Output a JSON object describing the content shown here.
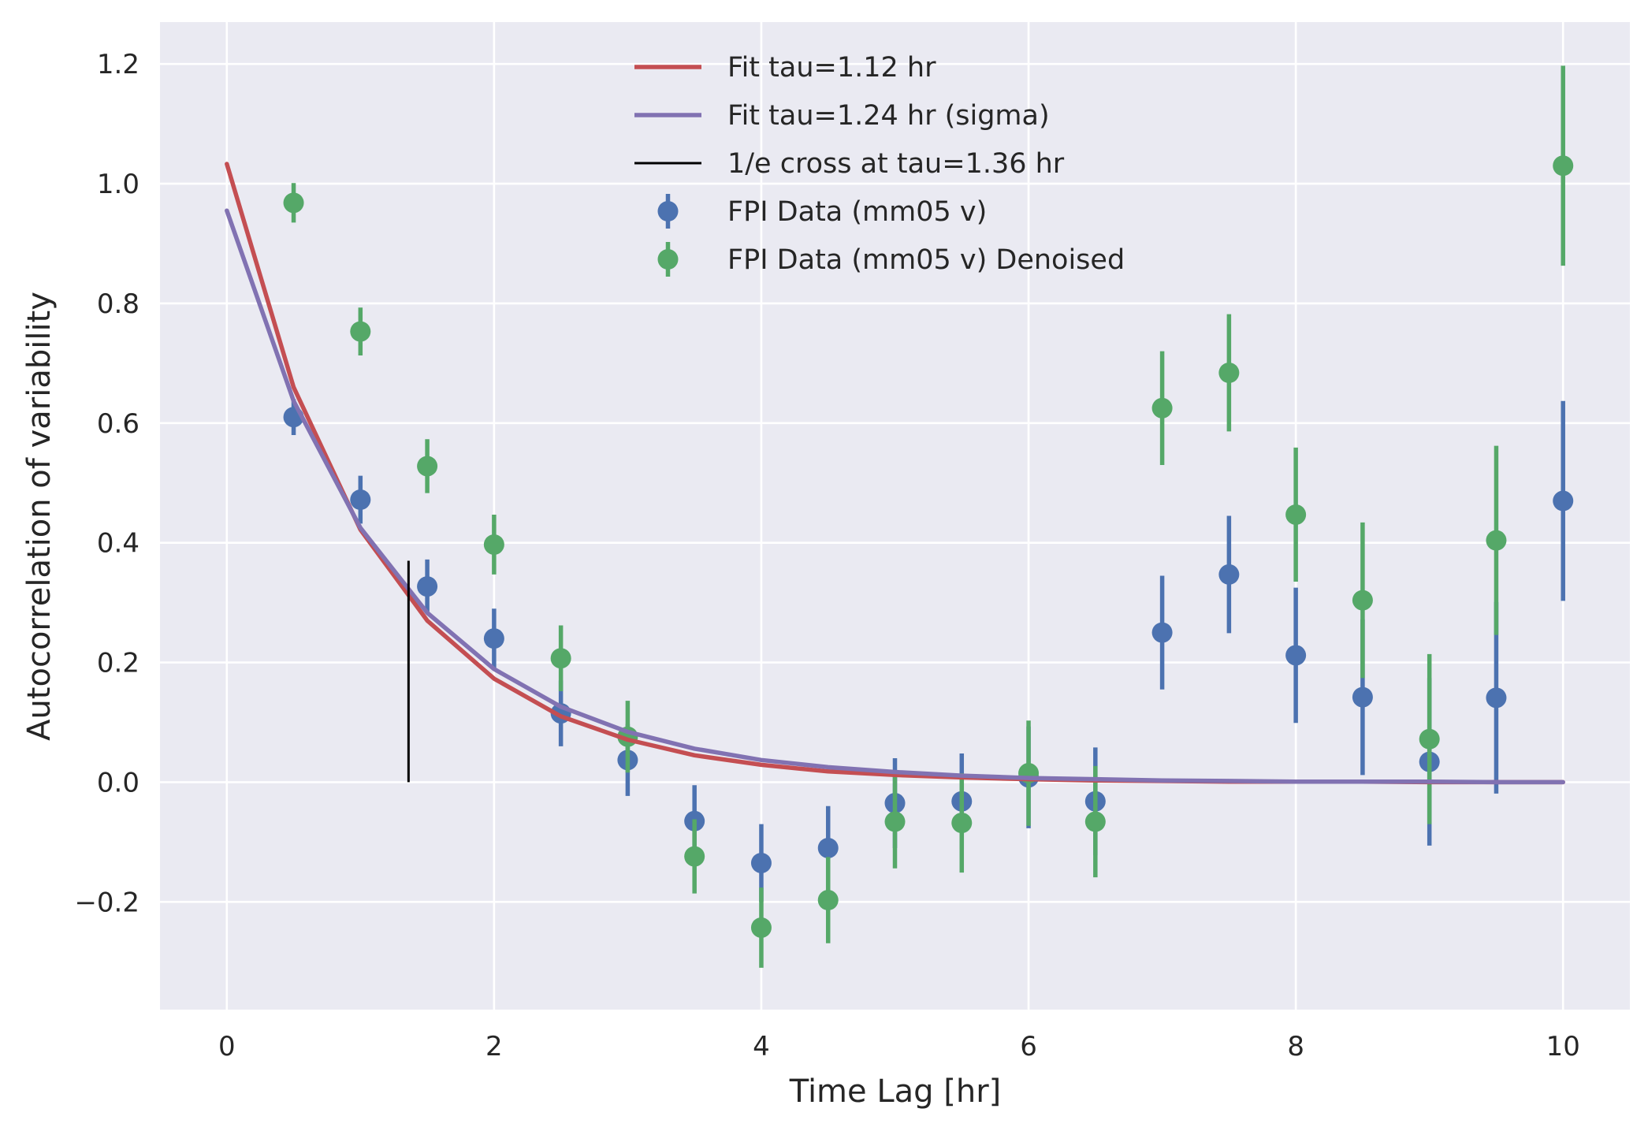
{
  "chart_data": {
    "type": "scatter",
    "xlabel": "Time Lag [hr]",
    "ylabel": "Autocorrelation of variability",
    "xlim": [
      -0.5,
      10.5
    ],
    "ylim": [
      -0.38,
      1.27
    ],
    "xticks": [
      0,
      2,
      4,
      6,
      8,
      10
    ],
    "xtick_labels": [
      "0",
      "2",
      "4",
      "6",
      "8",
      "10"
    ],
    "yticks": [
      -0.2,
      0.0,
      0.2,
      0.4,
      0.6,
      0.8,
      1.0,
      1.2
    ],
    "ytick_labels": [
      "−0.2",
      "0.0",
      "0.2",
      "0.4",
      "0.6",
      "0.8",
      "1.0",
      "1.2"
    ],
    "grid": true,
    "legend_position": "top-center",
    "background_color": "#EAEAF2",
    "lines": [
      {
        "name": "Fit tau=1.12 hr",
        "color": "#C44E52",
        "x": [
          0,
          0.5,
          1,
          1.5,
          2,
          2.5,
          3,
          3.5,
          4,
          4.5,
          5,
          5.5,
          6,
          6.5,
          7,
          7.5,
          8,
          8.5,
          9,
          9.5,
          10
        ],
        "y": [
          1.033,
          0.66,
          0.422,
          0.27,
          0.173,
          0.11,
          0.071,
          0.045,
          0.029,
          0.018,
          0.012,
          0.008,
          0.005,
          0.003,
          0.002,
          0.001,
          0.001,
          0.001,
          0.0,
          0.0,
          0.0
        ]
      },
      {
        "name": "Fit tau=1.24 hr (sigma)",
        "color": "#8172B2",
        "x": [
          0,
          0.5,
          1,
          1.5,
          2,
          2.5,
          3,
          3.5,
          4,
          4.5,
          5,
          5.5,
          6,
          6.5,
          7,
          7.5,
          8,
          8.5,
          9,
          9.5,
          10
        ],
        "y": [
          0.955,
          0.637,
          0.425,
          0.283,
          0.189,
          0.126,
          0.084,
          0.056,
          0.037,
          0.025,
          0.017,
          0.011,
          0.007,
          0.005,
          0.003,
          0.002,
          0.001,
          0.001,
          0.001,
          0.0,
          0.0
        ]
      }
    ],
    "vlines": [
      {
        "name": "1/e cross at tau=1.36 hr",
        "color": "#000000",
        "x": 1.36,
        "ymin": 0.0,
        "ymax": 0.37
      }
    ],
    "series": [
      {
        "name": "FPI Data (mm05 v)",
        "color": "#4C72B0",
        "x": [
          0.5,
          1,
          1.5,
          2,
          2.5,
          3,
          3.5,
          4,
          4.5,
          5,
          5.5,
          6,
          6.5,
          7,
          7.5,
          8,
          8.5,
          9,
          9.5,
          10
        ],
        "y": [
          0.61,
          0.472,
          0.327,
          0.24,
          0.115,
          0.037,
          -0.065,
          -0.135,
          -0.11,
          -0.035,
          -0.032,
          0.008,
          -0.032,
          0.25,
          0.347,
          0.212,
          0.142,
          0.034,
          0.141,
          0.47
        ],
        "yerr": [
          0.03,
          0.04,
          0.045,
          0.05,
          0.055,
          0.06,
          0.06,
          0.065,
          0.07,
          0.075,
          0.08,
          0.085,
          0.09,
          0.095,
          0.098,
          0.113,
          0.13,
          0.14,
          0.16,
          0.167
        ]
      },
      {
        "name": "FPI Data (mm05 v) Denoised",
        "color": "#55A868",
        "x": [
          0.5,
          1,
          1.5,
          2,
          2.5,
          3,
          3.5,
          4,
          4.5,
          5,
          5.5,
          6,
          6.5,
          7,
          7.5,
          8,
          8.5,
          9,
          9.5,
          10
        ],
        "y": [
          0.968,
          0.753,
          0.528,
          0.397,
          0.207,
          0.076,
          -0.124,
          -0.243,
          -0.197,
          -0.066,
          -0.068,
          0.015,
          -0.066,
          0.625,
          0.684,
          0.447,
          0.304,
          0.072,
          0.404,
          1.03
        ],
        "yerr": [
          0.033,
          0.04,
          0.045,
          0.05,
          0.055,
          0.06,
          0.062,
          0.067,
          0.072,
          0.078,
          0.083,
          0.088,
          0.093,
          0.095,
          0.098,
          0.112,
          0.13,
          0.142,
          0.158,
          0.167
        ]
      }
    ]
  }
}
